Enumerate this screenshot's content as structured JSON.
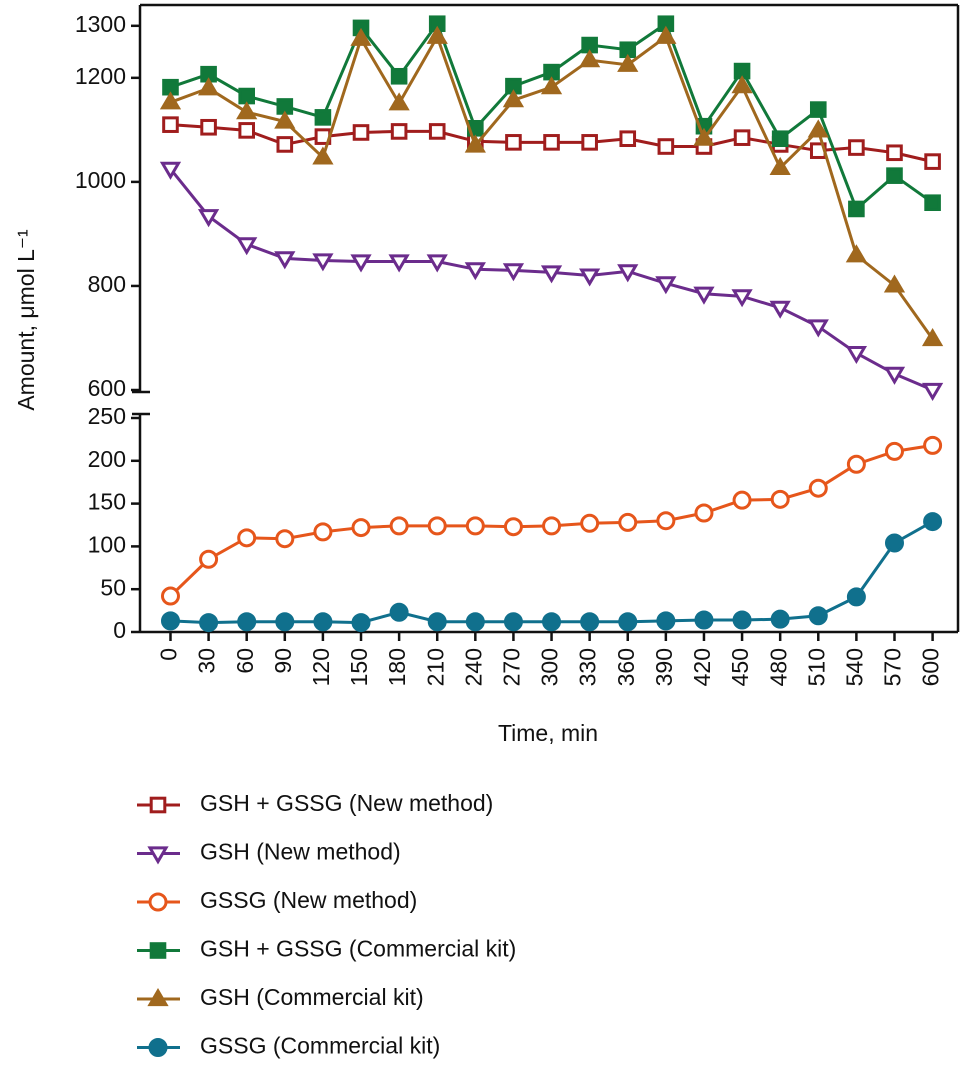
{
  "chart_data": {
    "type": "line",
    "x_label": "Time, min",
    "y_label": "Amount, μmol L⁻¹",
    "x": [
      0,
      30,
      60,
      90,
      120,
      150,
      180,
      210,
      240,
      270,
      300,
      330,
      360,
      390,
      420,
      450,
      480,
      510,
      540,
      570,
      600
    ],
    "xlim": [
      -24,
      620
    ],
    "xticks": [
      0,
      30,
      60,
      90,
      120,
      150,
      180,
      210,
      240,
      270,
      300,
      330,
      360,
      390,
      420,
      450,
      480,
      510,
      540,
      570,
      600
    ],
    "ylim": [
      0,
      250
    ],
    "yticks": [
      0,
      50,
      100,
      150,
      200,
      250
    ],
    "y2lim": [
      600,
      1340
    ],
    "y2ticks": [
      600,
      800,
      1000,
      1200,
      1300
    ],
    "legend": "bottom",
    "series": [
      {
        "name": "GSH + GSSG (New method)",
        "color": "#a01d1d",
        "marker": "square",
        "filled": false,
        "axis": "y2",
        "values": [
          1110,
          1105,
          1099,
          1072,
          1087,
          1095,
          1097,
          1097,
          1078,
          1076,
          1076,
          1076,
          1083,
          1068,
          1068,
          1085,
          1072,
          1060,
          1066,
          1056,
          1039
        ]
      },
      {
        "name": "GSH (New method)",
        "color": "#6b2c8c",
        "marker": "triangle-down",
        "filled": false,
        "axis": "y2",
        "values": [
          1025,
          934,
          880,
          853,
          849,
          847,
          847,
          847,
          832,
          830,
          826,
          820,
          828,
          805,
          785,
          780,
          758,
          722,
          671,
          631,
          600
        ]
      },
      {
        "name": "GSSG (New method)",
        "color": "#e6561b",
        "marker": "circle",
        "filled": false,
        "values": [
          42,
          85,
          110,
          109,
          117,
          122,
          124,
          124,
          124,
          123,
          124,
          127,
          128,
          130,
          139,
          154,
          155,
          168,
          196,
          211,
          218
        ]
      },
      {
        "name": "GSH + GSSG (Commercial kit)",
        "color": "#11793a",
        "marker": "square",
        "filled": true,
        "axis": "y2",
        "values": [
          1182,
          1207,
          1165,
          1145,
          1124,
          1296,
          1203,
          1304,
          1103,
          1184,
          1211,
          1263,
          1254,
          1304,
          1107,
          1213,
          1083,
          1139,
          948,
          1012,
          960
        ]
      },
      {
        "name": "GSH (Commercial kit)",
        "color": "#a0681e",
        "marker": "triangle-up",
        "filled": true,
        "axis": "y2",
        "values": [
          1153,
          1180,
          1134,
          1116,
          1047,
          1275,
          1151,
          1279,
          1070,
          1157,
          1182,
          1234,
          1225,
          1279,
          1083,
          1184,
          1027,
          1099,
          859,
          801,
          698
        ]
      },
      {
        "name": "GSSG (Commercial kit)",
        "color": "#10708d",
        "marker": "circle",
        "filled": true,
        "values": [
          13,
          11,
          12,
          12,
          12,
          11,
          23,
          12,
          12,
          12,
          12,
          12,
          12,
          13,
          14,
          14,
          15,
          19,
          41,
          104,
          129
        ]
      }
    ]
  }
}
